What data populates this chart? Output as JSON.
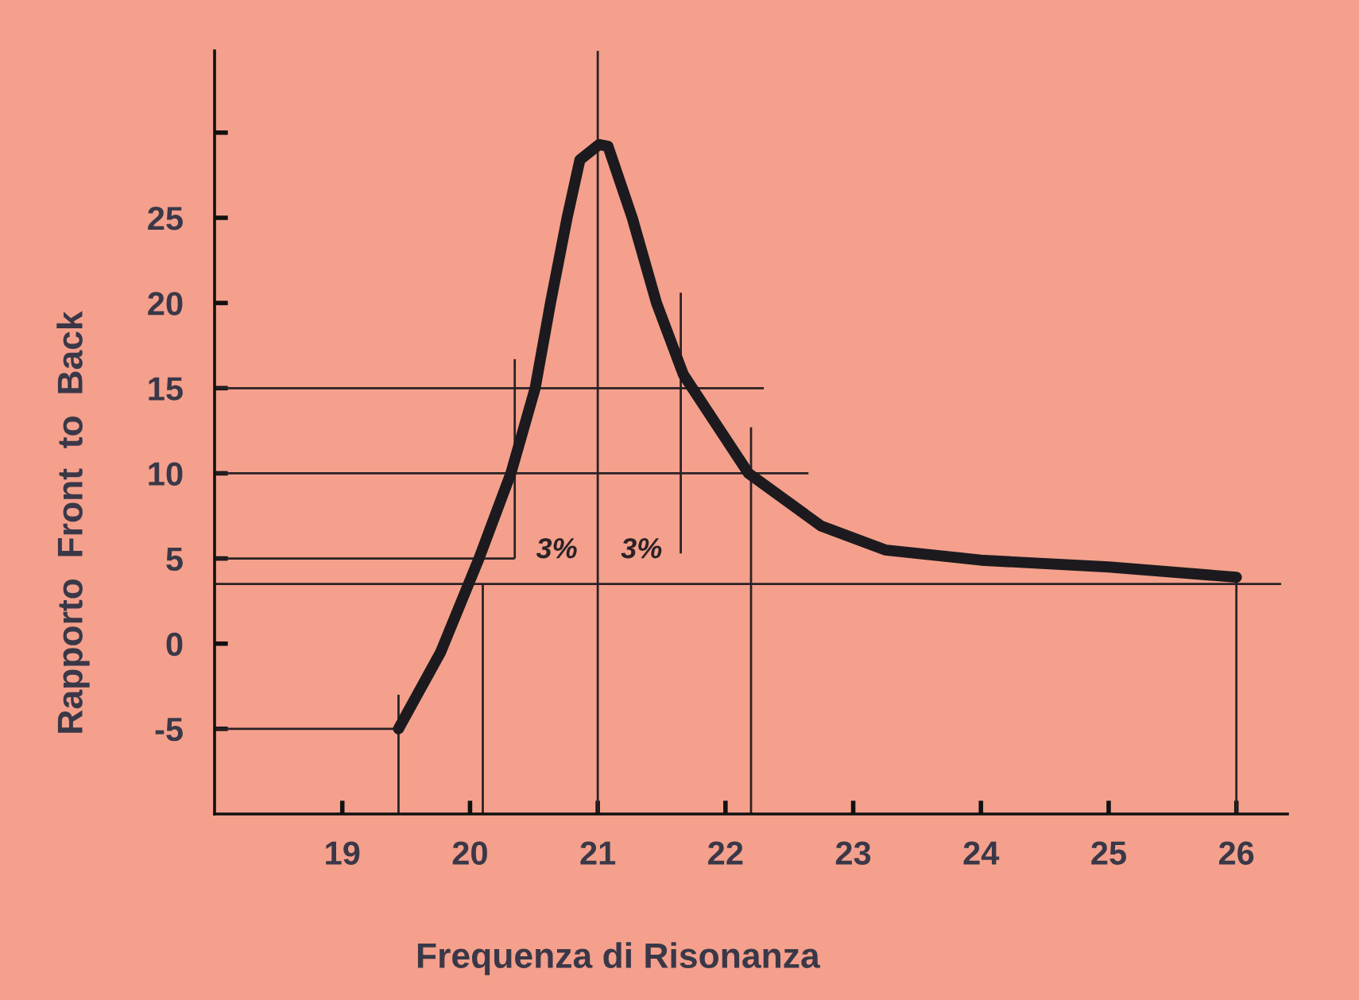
{
  "chart_data": {
    "type": "line",
    "xlabel": "Frequenza di Risonanza",
    "ylabel": "Rapporto  Front  to  Back",
    "xlim": [
      18,
      26.4
    ],
    "ylim": [
      -10,
      34.8
    ],
    "xticks": [
      19,
      20,
      21,
      22,
      23,
      24,
      25,
      26
    ],
    "yticks": [
      -5,
      0,
      5,
      10,
      15,
      20,
      25,
      {
        "value": 30,
        "label": null
      }
    ],
    "grid": false,
    "marker": "none",
    "line_style": "solid",
    "series": [
      {
        "color": "#1c1a1e",
        "x": [
          19.44,
          19.77,
          20.07,
          20.32,
          20.51,
          20.63,
          20.76,
          20.86,
          21.01,
          21.08,
          21.27,
          21.46,
          21.67,
          22.18,
          22.75,
          23.25,
          24.0,
          25.0,
          26.0
        ],
        "values": [
          -5,
          -0.5,
          5,
          10,
          15,
          20,
          25,
          28.4,
          29.3,
          29.2,
          25,
          20,
          15.8,
          10,
          6.9,
          5.5,
          4.9,
          4.5,
          3.9
        ]
      },
      {
        "color": "#2a2226",
        "x": [
          18,
          22.3
        ],
        "values": [
          15,
          15
        ]
      },
      {
        "color": "#2a2226",
        "x": [
          18,
          22.65
        ],
        "values": [
          10,
          10
        ]
      },
      {
        "color": "#2a2226",
        "x": [
          18,
          20.35
        ],
        "values": [
          5,
          5
        ]
      },
      {
        "color": "#2a2226",
        "x": [
          18,
          26.35
        ],
        "values": [
          3.5,
          3.5
        ]
      },
      {
        "color": "#2a2226",
        "x": [
          18,
          19.44
        ],
        "values": [
          -5,
          -5
        ]
      },
      {
        "color": "#2a2226",
        "x": [
          19.44,
          19.44
        ],
        "values": [
          -10,
          -3
        ]
      },
      {
        "color": "#2a2226",
        "x": [
          20.1,
          20.1
        ],
        "values": [
          -10,
          3.5
        ]
      },
      {
        "color": "#2a2226",
        "x": [
          20.35,
          20.35
        ],
        "values": [
          5,
          16.7
        ]
      },
      {
        "color": "#2a2226",
        "x": [
          21.65,
          21.65
        ],
        "values": [
          5.3,
          20.6
        ]
      },
      {
        "color": "#2a2226",
        "x": [
          22.2,
          22.2
        ],
        "values": [
          -10,
          12.7
        ]
      },
      {
        "color": "#2a2226",
        "x": [
          26.0,
          26.0
        ],
        "values": [
          -10,
          3.9
        ]
      }
    ],
    "ref_lines": [
      {
        "axis": "x",
        "value": 21,
        "color": "#2a2226"
      }
    ],
    "annotations": [
      "3%",
      "3%"
    ]
  }
}
